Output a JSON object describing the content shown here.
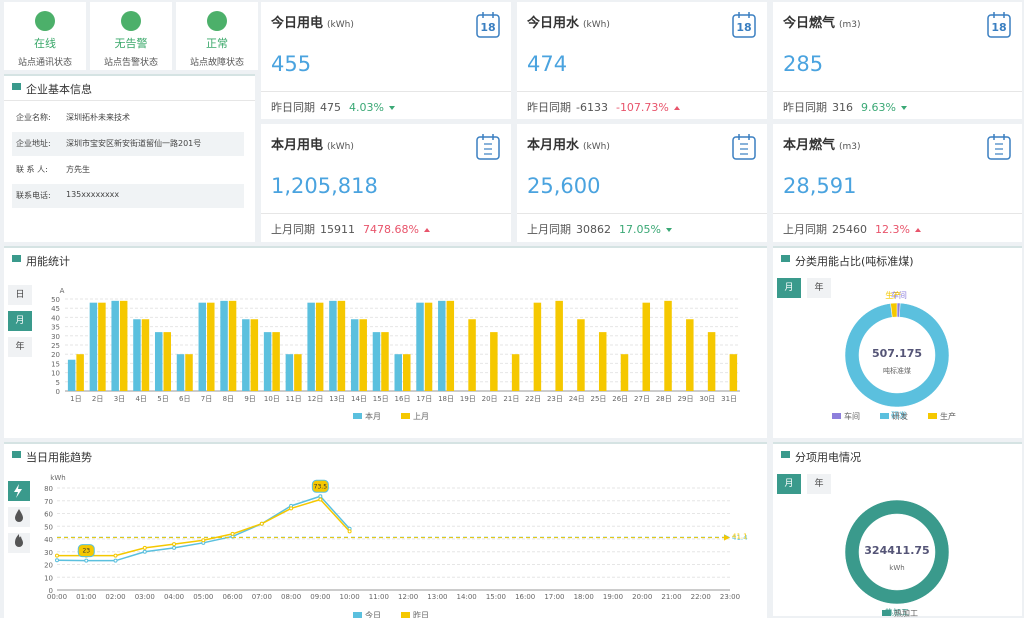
{
  "status": [
    {
      "label": "在线",
      "desc": "站点通讯状态"
    },
    {
      "label": "无告警",
      "desc": "站点告警状态"
    },
    {
      "label": "正常",
      "desc": "站点故障状态"
    }
  ],
  "company": {
    "title": "企业基本信息",
    "rows": [
      [
        "企业名称:",
        "深圳拓朴未来技术"
      ],
      [
        "企业地址:",
        "深圳市宝安区新安街道留仙一路201号"
      ],
      [
        "联 系 人:",
        "方先生"
      ],
      [
        "联系电话:",
        "135xxxxxxxx"
      ]
    ]
  },
  "cards": [
    {
      "title": "今日用电",
      "unit": "(kWh)",
      "icon": "18",
      "value": "455",
      "compare_label": "昨日同期",
      "compare_value": "475",
      "change": "4.03%",
      "trend": "down"
    },
    {
      "title": "今日用水",
      "unit": "(kWh)",
      "icon": "18",
      "value": "474",
      "compare_label": "昨日同期",
      "compare_value": "-6133",
      "change": "-107.73%",
      "trend": "up"
    },
    {
      "title": "今日燃气",
      "unit": "(m3)",
      "icon": "18",
      "value": "285",
      "compare_label": "昨日同期",
      "compare_value": "316",
      "change": "9.63%",
      "trend": "down"
    },
    {
      "title": "本月用电",
      "unit": "(kWh)",
      "value": "1,205,818",
      "compare_label": "上月同期",
      "compare_value": "15911",
      "change": "7478.68%",
      "trend": "up"
    },
    {
      "title": "本月用水",
      "unit": "(kWh)",
      "value": "25,600",
      "compare_label": "上月同期",
      "compare_value": "30862",
      "change": "17.05%",
      "trend": "down"
    },
    {
      "title": "本月燃气",
      "unit": "(m3)",
      "value": "28,591",
      "compare_label": "上月同期",
      "compare_value": "25460",
      "change": "12.3%",
      "trend": "up"
    }
  ],
  "chart_data": [
    {
      "type": "bar",
      "title": "用能统计",
      "buttons": [
        "日",
        "月",
        "年"
      ],
      "active": "月",
      "y_label": "A",
      "ylim": [
        0,
        50
      ],
      "yticks": [
        0,
        5,
        10,
        15,
        20,
        25,
        30,
        35,
        40,
        45,
        50
      ],
      "grid": true,
      "categories": [
        "1日",
        "2日",
        "3日",
        "4日",
        "5日",
        "6日",
        "7日",
        "8日",
        "9日",
        "10日",
        "11日",
        "12日",
        "13日",
        "14日",
        "15日",
        "16日",
        "17日",
        "18日",
        "19日",
        "20日",
        "21日",
        "22日",
        "23日",
        "24日",
        "25日",
        "26日",
        "27日",
        "28日",
        "29日",
        "30日",
        "31日"
      ],
      "series": [
        {
          "name": "本月",
          "color": "#5bc0de",
          "values": [
            17,
            48,
            49,
            39,
            32,
            20,
            48,
            49,
            39,
            32,
            20,
            48,
            49,
            39,
            32,
            20,
            48,
            49,
            null,
            null,
            null,
            null,
            null,
            null,
            null,
            null,
            null,
            null,
            null,
            null,
            null
          ]
        },
        {
          "name": "上月",
          "color": "#f5c800",
          "values": [
            20,
            48,
            49,
            39,
            32,
            20,
            48,
            49,
            39,
            32,
            20,
            48,
            49,
            39,
            32,
            20,
            48,
            49,
            39,
            32,
            20,
            48,
            49,
            39,
            32,
            20,
            48,
            49,
            39,
            32,
            20
          ]
        }
      ]
    },
    {
      "type": "pie",
      "title": "分类用能占比(吨标准煤)",
      "buttons": [
        "月",
        "年"
      ],
      "active": "月",
      "center_value": 507.175,
      "center_label": "吨标准煤",
      "categories": [
        "车间",
        "研发",
        "生产"
      ],
      "values": [
        5,
        492,
        10
      ],
      "colors": [
        "#8d7fdc",
        "#5bc0de",
        "#f5c800"
      ]
    },
    {
      "type": "line",
      "title": "当日用能趋势",
      "y_label": "kWh",
      "ylim": [
        0,
        80
      ],
      "yticks": [
        0,
        10,
        20,
        30,
        40,
        50,
        60,
        70,
        80
      ],
      "grid": true,
      "categories": [
        "00:00",
        "01:00",
        "02:00",
        "03:00",
        "04:00",
        "05:00",
        "06:00",
        "07:00",
        "08:00",
        "09:00",
        "10:00",
        "11:00",
        "12:00",
        "13:00",
        "14:00",
        "15:00",
        "16:00",
        "17:00",
        "18:00",
        "19:00",
        "20:00",
        "21:00",
        "22:00",
        "23:00"
      ],
      "series": [
        {
          "name": "今日",
          "color": "#5bc0de",
          "average": 41.4,
          "values": [
            23.3,
            23,
            23,
            30,
            33,
            37,
            42,
            52,
            66,
            73.5,
            48,
            null,
            null,
            null,
            null,
            null,
            null,
            null,
            null,
            null,
            null,
            null,
            null,
            null
          ]
        },
        {
          "name": "昨日",
          "color": "#f5c800",
          "average": 41.1,
          "values": [
            27,
            27,
            27,
            33,
            36,
            39,
            44,
            52,
            64,
            71,
            46,
            null,
            null,
            null,
            null,
            null,
            null,
            null,
            null,
            null,
            null,
            null,
            null,
            null
          ]
        }
      ]
    },
    {
      "type": "pie",
      "title": "分项用电情况",
      "buttons": [
        "月",
        "年"
      ],
      "active": "月",
      "center_value": 324411.75,
      "center_label": "kWh",
      "categories": [
        "热加工"
      ],
      "values": [
        324411.75
      ],
      "colors": [
        "#3a9a8c"
      ]
    }
  ]
}
